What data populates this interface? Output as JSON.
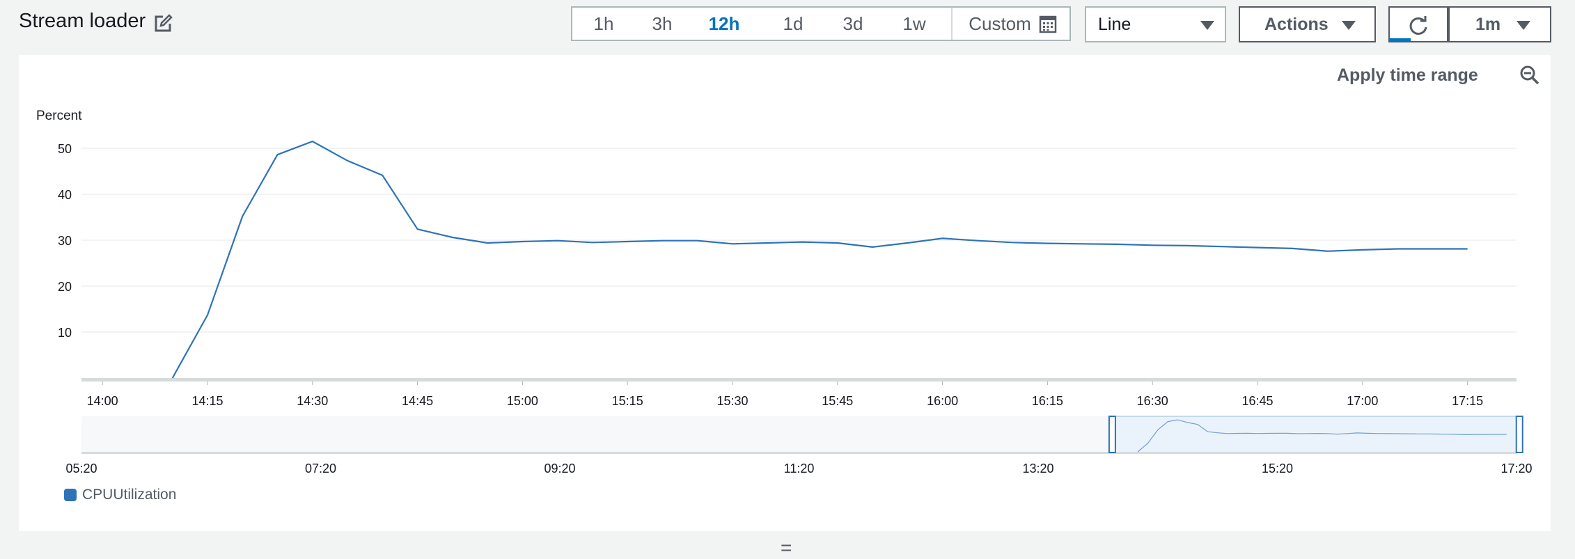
{
  "header": {
    "title": "Stream loader",
    "edit_icon": "edit-icon"
  },
  "time_range": {
    "options": [
      "1h",
      "3h",
      "12h",
      "1d",
      "3d",
      "1w"
    ],
    "selected": "12h",
    "custom_label": "Custom",
    "custom_icon": "calendar-icon"
  },
  "chart_type_select": {
    "value": "Line"
  },
  "actions": {
    "label": "Actions"
  },
  "refresh": {
    "icon": "refresh-icon",
    "interval": "1m"
  },
  "panel": {
    "apply_time_range_label": "Apply time range",
    "zoom_icon": "zoom-out-icon",
    "resize_handle": "="
  },
  "colors": {
    "series": "#2e73b8",
    "selected_tab": "#0073bb"
  },
  "chart_data": {
    "type": "line",
    "ylabel": "Percent",
    "ylim": [
      0,
      55
    ],
    "yticks": [
      10,
      20,
      30,
      40,
      50
    ],
    "x_range": [
      "13:57",
      "17:22"
    ],
    "xticks": [
      "14:00",
      "14:15",
      "14:30",
      "14:45",
      "15:00",
      "15:15",
      "15:30",
      "15:45",
      "16:00",
      "16:15",
      "16:30",
      "16:45",
      "17:00",
      "17:15"
    ],
    "series": [
      {
        "name": "CPUUtilization",
        "x": [
          "14:10",
          "14:15",
          "14:20",
          "14:25",
          "14:30",
          "14:35",
          "14:40",
          "14:45",
          "14:50",
          "14:55",
          "15:00",
          "15:05",
          "15:10",
          "15:15",
          "15:20",
          "15:25",
          "15:30",
          "15:35",
          "15:40",
          "15:45",
          "15:50",
          "15:55",
          "16:00",
          "16:05",
          "16:10",
          "16:15",
          "16:20",
          "16:25",
          "16:30",
          "16:35",
          "16:40",
          "16:45",
          "16:50",
          "16:55",
          "17:00",
          "17:05",
          "17:10",
          "17:15"
        ],
        "values": [
          0,
          13.7,
          35.2,
          48.6,
          51.5,
          47.3,
          44.1,
          32.4,
          30.6,
          29.4,
          29.7,
          29.9,
          29.5,
          29.7,
          29.9,
          29.9,
          29.2,
          29.4,
          29.6,
          29.4,
          28.5,
          29.4,
          30.4,
          29.9,
          29.5,
          29.3,
          29.2,
          29.1,
          28.9,
          28.8,
          28.6,
          28.4,
          28.2,
          27.6,
          27.9,
          28.1,
          28.1,
          28.1
        ]
      }
    ],
    "legend": [
      "CPUUtilization"
    ],
    "overview": {
      "xticks": [
        "05:20",
        "07:20",
        "09:20",
        "11:20",
        "13:20",
        "15:20",
        "17:20"
      ],
      "range": [
        "05:20",
        "17:20"
      ],
      "selection": [
        "13:57",
        "17:22"
      ]
    }
  }
}
